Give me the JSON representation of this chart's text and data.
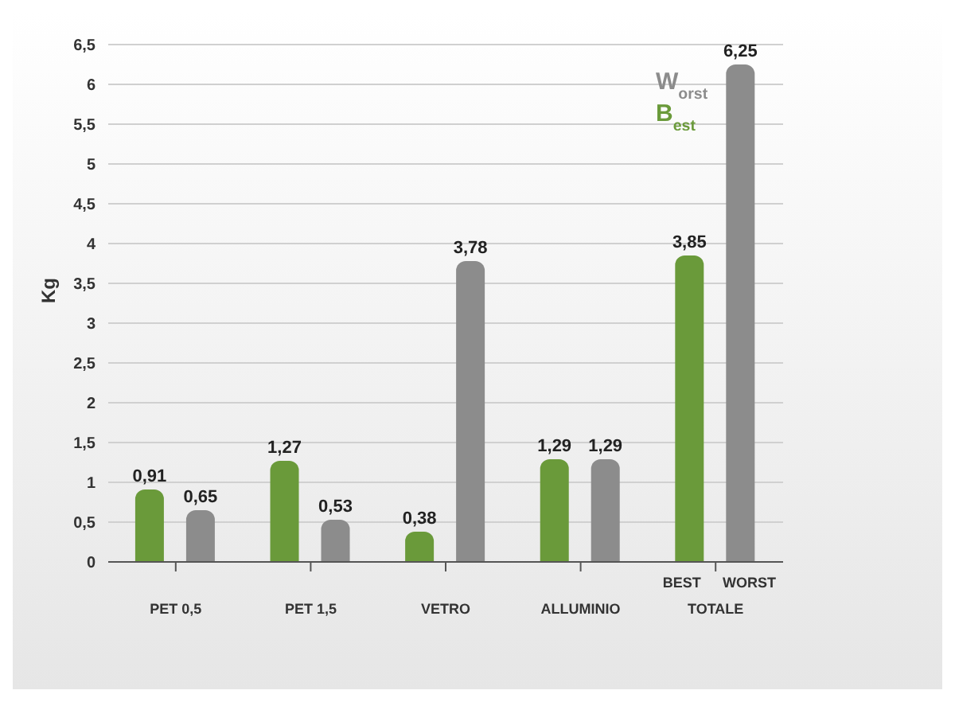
{
  "chart_data": {
    "type": "bar",
    "ylabel": "Kg",
    "categories": [
      "PET 0,5",
      "PET 1,5",
      "VETRO",
      "ALLUMINIO",
      "TOTALE"
    ],
    "series": [
      {
        "name": "B$_{est}$",
        "color": "#6a9a3a",
        "values": [
          0.91,
          1.27,
          0.38,
          1.29,
          3.85
        ],
        "value_labels": [
          "0,91",
          "1,27",
          "0,38",
          "1,29",
          "3,85"
        ]
      },
      {
        "name": "W$_{orst}$",
        "color": "#8c8c8c",
        "values": [
          0.65,
          0.53,
          3.78,
          1.29,
          6.25
        ],
        "value_labels": [
          "0,65",
          "0,53",
          "3,78",
          "1,29",
          "6,25"
        ]
      }
    ],
    "ylim": [
      0,
      6.5
    ],
    "yticks": [
      0,
      {
        "value": 0.5,
        "label": "0,5"
      },
      1,
      {
        "value": 1.5,
        "label": "1,5"
      },
      2,
      {
        "value": 2.5,
        "label": "2,5"
      },
      3,
      {
        "value": 3.5,
        "label": "3,5"
      },
      4,
      {
        "value": 4.5,
        "label": "4,5"
      },
      5,
      {
        "value": 5.5,
        "label": "5,5"
      },
      6,
      {
        "value": 6.5,
        "label": "6,5"
      }
    ],
    "grid": "y",
    "legend": "top right",
    "annotations": [
      "BEST",
      "WORST"
    ]
  }
}
